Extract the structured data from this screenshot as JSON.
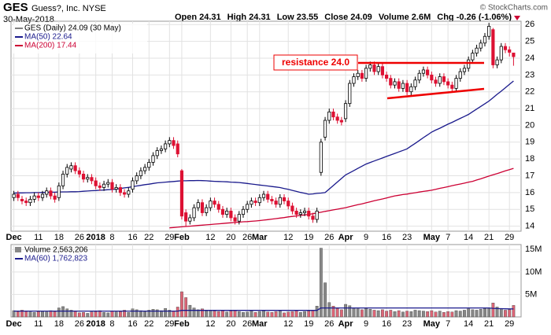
{
  "header": {
    "symbol": "GES",
    "company": "Guess?, Inc. NYSE",
    "date": "30-May-2018",
    "credit": "© StockCharts.com",
    "quote": [
      "Open 24.31",
      "High 24.31",
      "Low 23.55",
      "Close 24.09",
      "Volume 2.6M",
      "Chg -0.26 (-1.06%)"
    ]
  },
  "chart_data": {
    "type": "candlestick",
    "name": "GES (Daily) 24.09 (30 May)",
    "categories": [
      "Dec",
      null,
      null,
      null,
      null,
      null,
      "11",
      null,
      null,
      null,
      null,
      "18",
      null,
      null,
      null,
      null,
      "26",
      null,
      null,
      null,
      "2018",
      null,
      null,
      null,
      "8",
      null,
      null,
      null,
      null,
      "16",
      null,
      null,
      null,
      "22",
      null,
      null,
      null,
      null,
      "29",
      null,
      null,
      "Feb",
      null,
      null,
      null,
      null,
      null,
      null,
      "12",
      null,
      null,
      null,
      null,
      "20",
      null,
      null,
      null,
      "26",
      null,
      null,
      "Mar",
      null,
      null,
      null,
      null,
      null,
      null,
      "12",
      null,
      null,
      null,
      null,
      "19",
      null,
      null,
      null,
      null,
      "26",
      null,
      null,
      null,
      "Apr",
      null,
      null,
      null,
      null,
      "9",
      null,
      null,
      null,
      null,
      "16",
      null,
      null,
      null,
      null,
      "23",
      null,
      null,
      null,
      null,
      null,
      "May",
      null,
      null,
      null,
      "7",
      null,
      null,
      null,
      null,
      "14",
      null,
      null,
      null,
      null,
      "21",
      null,
      null,
      null,
      null,
      "29",
      null
    ],
    "open": [
      15.7,
      15.9,
      15.6,
      15.5,
      15.4,
      15.6,
      15.8,
      15.7,
      15.9,
      16.1,
      15.8,
      15.7,
      16.4,
      17.1,
      17.4,
      17.6,
      17.3,
      17.1,
      16.8,
      16.9,
      16.7,
      16.4,
      16.3,
      16.5,
      16.6,
      16.2,
      16.3,
      16.0,
      15.9,
      16.2,
      16.7,
      17.0,
      17.3,
      17.5,
      17.8,
      18.2,
      18.5,
      18.6,
      18.9,
      19.1,
      18.9,
      17.3,
      14.8,
      14.3,
      14.5,
      15.1,
      15.4,
      14.8,
      15.1,
      15.5,
      15.3,
      15.0,
      14.7,
      14.9,
      14.5,
      14.3,
      14.7,
      15.0,
      15.3,
      15.5,
      15.4,
      15.7,
      15.9,
      15.6,
      15.5,
      15.3,
      15.7,
      15.5,
      15.2,
      14.9,
      14.7,
      14.8,
      14.9,
      14.6,
      14.4,
      17.2,
      19.3,
      20.3,
      20.8,
      20.5,
      20.3,
      20.4,
      21.3,
      22.5,
      22.9,
      23.1,
      22.8,
      23.4,
      23.6,
      23.2,
      23.5,
      23.0,
      22.8,
      22.4,
      22.6,
      22.2,
      22.5,
      22.0,
      22.3,
      22.7,
      23.1,
      23.3,
      23.0,
      22.7,
      22.5,
      22.9,
      22.6,
      22.4,
      22.2,
      22.8,
      23.2,
      23.4,
      23.9,
      24.3,
      24.6,
      24.9,
      25.3,
      25.7,
      23.6,
      23.9,
      24.7,
      24.5,
      24.31
    ],
    "high": [
      16.1,
      16.1,
      15.8,
      15.7,
      15.8,
      16.0,
      16.0,
      16.1,
      16.3,
      16.3,
      16.0,
      16.6,
      17.3,
      17.7,
      17.8,
      17.8,
      17.5,
      17.3,
      17.1,
      17.1,
      16.9,
      16.6,
      16.7,
      16.8,
      16.8,
      16.5,
      16.5,
      16.2,
      16.3,
      16.9,
      17.2,
      17.5,
      17.7,
      18.0,
      18.4,
      18.7,
      18.8,
      19.1,
      19.3,
      19.3,
      19.1,
      17.4,
      15.0,
      14.7,
      15.3,
      15.6,
      15.6,
      15.3,
      15.7,
      15.7,
      15.5,
      15.2,
      15.1,
      15.1,
      14.7,
      14.9,
      15.2,
      15.5,
      15.7,
      15.7,
      15.9,
      16.1,
      16.1,
      15.8,
      15.7,
      15.9,
      15.9,
      15.7,
      15.4,
      15.1,
      15.0,
      15.1,
      15.1,
      14.8,
      15.1,
      19.2,
      20.5,
      21.0,
      21.0,
      20.7,
      20.5,
      21.5,
      22.7,
      23.1,
      23.3,
      23.3,
      23.6,
      23.8,
      23.8,
      23.7,
      23.7,
      23.2,
      23.0,
      22.8,
      22.8,
      22.7,
      22.7,
      22.5,
      22.9,
      23.3,
      23.5,
      23.5,
      23.2,
      22.9,
      23.1,
      23.1,
      22.8,
      22.6,
      23.0,
      23.4,
      23.6,
      24.1,
      24.5,
      24.8,
      25.1,
      25.5,
      26.1,
      25.8,
      24.1,
      24.9,
      24.9,
      24.7,
      24.31
    ],
    "low": [
      15.5,
      15.5,
      15.3,
      15.2,
      15.2,
      15.4,
      15.5,
      15.5,
      15.7,
      15.6,
      15.4,
      15.5,
      16.2,
      16.9,
      17.2,
      17.1,
      16.9,
      16.6,
      16.6,
      16.5,
      16.2,
      16.1,
      16.1,
      16.3,
      16.0,
      16.0,
      15.8,
      15.7,
      15.7,
      16.0,
      16.5,
      16.8,
      17.1,
      17.3,
      17.6,
      18.0,
      18.3,
      18.4,
      18.7,
      18.6,
      18.1,
      14.4,
      14.0,
      14.1,
      14.3,
      14.9,
      14.6,
      14.6,
      14.9,
      15.1,
      14.8,
      14.5,
      14.5,
      14.3,
      14.1,
      14.1,
      14.5,
      14.8,
      15.1,
      15.2,
      15.2,
      15.5,
      15.4,
      15.3,
      15.1,
      15.1,
      15.3,
      15.0,
      14.7,
      14.5,
      14.5,
      14.6,
      14.4,
      14.2,
      14.2,
      17.0,
      19.1,
      20.1,
      20.3,
      20.1,
      20.0,
      20.2,
      21.1,
      22.3,
      22.7,
      22.6,
      22.6,
      23.2,
      23.0,
      23.0,
      22.8,
      22.6,
      22.2,
      22.2,
      22.0,
      22.0,
      21.8,
      21.8,
      22.1,
      22.5,
      22.9,
      22.8,
      22.5,
      22.3,
      22.3,
      22.4,
      22.2,
      22.0,
      22.0,
      22.6,
      23.0,
      23.2,
      23.7,
      24.1,
      24.4,
      24.7,
      25.1,
      23.4,
      23.4,
      23.7,
      24.3,
      24.1,
      23.55
    ],
    "close": [
      15.9,
      15.7,
      15.5,
      15.4,
      15.6,
      15.8,
      15.7,
      15.9,
      16.1,
      15.8,
      15.6,
      16.4,
      17.1,
      17.5,
      17.6,
      17.3,
      17.1,
      16.8,
      16.9,
      16.7,
      16.4,
      16.3,
      16.5,
      16.6,
      16.2,
      16.3,
      16.0,
      15.9,
      16.1,
      16.7,
      17.0,
      17.3,
      17.5,
      17.8,
      18.2,
      18.5,
      18.6,
      18.9,
      19.1,
      18.8,
      18.3,
      14.6,
      14.3,
      14.5,
      15.1,
      15.4,
      14.8,
      15.1,
      15.5,
      15.3,
      15.0,
      14.7,
      14.9,
      14.5,
      14.3,
      14.7,
      15.0,
      15.3,
      15.5,
      15.4,
      15.7,
      15.9,
      15.6,
      15.5,
      15.3,
      15.7,
      15.5,
      15.2,
      14.9,
      14.7,
      14.8,
      14.9,
      14.6,
      14.4,
      14.9,
      19.0,
      20.3,
      20.8,
      20.5,
      20.3,
      20.2,
      21.3,
      22.5,
      22.9,
      23.1,
      22.8,
      23.4,
      23.6,
      23.2,
      23.5,
      23.0,
      22.8,
      22.4,
      22.6,
      22.2,
      22.5,
      22.0,
      22.3,
      22.7,
      23.1,
      23.3,
      23.0,
      22.7,
      22.5,
      22.9,
      22.6,
      22.4,
      22.2,
      22.8,
      23.2,
      23.4,
      23.9,
      24.3,
      24.6,
      24.9,
      25.3,
      25.9,
      23.6,
      23.9,
      24.7,
      24.5,
      24.35,
      24.09
    ],
    "volume_name": "Volume 2,563,206",
    "volume": [
      1400000.0,
      1200000.0,
      1500000.0,
      1300000.0,
      1100000.0,
      1000000.0,
      1200000.0,
      1300000.0,
      1100000.0,
      1400000.0,
      1200000.0,
      2000000.0,
      2300000.0,
      1800000.0,
      1500000.0,
      1300000.0,
      900000.0,
      1000000.0,
      800000.0,
      1100000.0,
      1200000.0,
      1400000.0,
      1000000.0,
      900000.0,
      1300000.0,
      1100000.0,
      1200000.0,
      1500000.0,
      1000000.0,
      1800000.0,
      1600000.0,
      1400000.0,
      1300000.0,
      1500000.0,
      1700000.0,
      1600000.0,
      1400000.0,
      1900000.0,
      1500000.0,
      1300000.0,
      2200000.0,
      5600000.0,
      4300000.0,
      2600000.0,
      2000000.0,
      1600000.0,
      1800000.0,
      1400000.0,
      1500000.0,
      1300000.0,
      1200000.0,
      1400000.0,
      1100000.0,
      1300000.0,
      1500000.0,
      1200000.0,
      1000000.0,
      1100000.0,
      1300000.0,
      1000000.0,
      1200000.0,
      1400000.0,
      1100000.0,
      1000000.0,
      1200000.0,
      1300000.0,
      900000.0,
      1100000.0,
      1200000.0,
      1400000.0,
      1000000.0,
      1200000.0,
      1300000.0,
      1500000.0,
      2400000.0,
      15300000.0,
      7600000.0,
      3200000.0,
      2400000.0,
      1900000.0,
      1600000.0,
      2800000.0,
      2500000.0,
      2000000.0,
      1800000.0,
      1600000.0,
      1900000.0,
      1700000.0,
      1500000.0,
      1400000.0,
      1600000.0,
      1300000.0,
      1500000.0,
      1200000.0,
      1400000.0,
      1100000.0,
      1300000.0,
      1200000.0,
      1500000.0,
      1400000.0,
      1300000.0,
      1200000.0,
      1400000.0,
      1100000.0,
      1300000.0,
      1000000.0,
      1200000.0,
      1100000.0,
      1400000.0,
      1300000.0,
      1500000.0,
      1800000.0,
      1600000.0,
      1500000.0,
      1700000.0,
      1900000.0,
      2000000.0,
      3100000.0,
      2200000.0,
      1800000.0,
      1500000.0,
      1600000.0,
      2563206
    ],
    "series": [
      {
        "name": "MA(50) 22.64",
        "color": "#1a1a8c",
        "values": [
          15.97,
          15.98,
          15.98,
          15.99,
          15.99,
          16.0,
          16.0,
          16.01,
          16.01,
          16.02,
          16.02,
          16.03,
          16.04,
          16.04,
          16.05,
          16.05,
          16.06,
          16.08,
          16.09,
          16.11,
          16.12,
          16.14,
          16.15,
          16.17,
          16.18,
          16.2,
          16.24,
          16.28,
          16.31,
          16.35,
          16.39,
          16.43,
          16.47,
          16.5,
          16.54,
          16.58,
          16.6,
          16.62,
          16.64,
          16.66,
          16.68,
          16.7,
          16.7,
          16.71,
          16.71,
          16.72,
          16.71,
          16.7,
          16.68,
          16.67,
          16.66,
          16.65,
          16.64,
          16.62,
          16.61,
          16.6,
          16.57,
          16.54,
          16.51,
          16.48,
          16.45,
          16.42,
          16.39,
          16.36,
          16.33,
          16.3,
          16.24,
          16.19,
          16.13,
          16.07,
          16.01,
          15.96,
          15.9,
          15.92,
          15.95,
          15.97,
          16.0,
          16.21,
          16.42,
          16.63,
          16.84,
          17.05,
          17.18,
          17.31,
          17.44,
          17.57,
          17.7,
          17.79,
          17.88,
          17.97,
          18.06,
          18.15,
          18.24,
          18.33,
          18.42,
          18.51,
          18.6,
          18.77,
          18.93,
          19.1,
          19.27,
          19.43,
          19.6,
          19.72,
          19.83,
          19.95,
          20.07,
          20.18,
          20.3,
          20.42,
          20.53,
          20.65,
          20.81,
          20.97,
          21.13,
          21.29,
          21.45,
          21.65,
          21.85,
          22.04,
          22.24,
          22.44,
          22.64
        ]
      },
      {
        "name": "MA(200) 17.44",
        "color": "#cc0033",
        "values": [
          null,
          null,
          null,
          null,
          null,
          null,
          null,
          null,
          null,
          null,
          null,
          null,
          null,
          null,
          null,
          null,
          null,
          null,
          null,
          null,
          null,
          null,
          null,
          null,
          null,
          null,
          null,
          null,
          null,
          null,
          null,
          null,
          null,
          null,
          null,
          null,
          null,
          null,
          13.9,
          13.92,
          13.94,
          13.96,
          13.98,
          14.0,
          14.02,
          14.04,
          14.06,
          14.08,
          14.1,
          14.12,
          14.14,
          14.16,
          14.18,
          14.2,
          14.22,
          14.24,
          14.26,
          14.27,
          14.29,
          14.31,
          14.33,
          14.36,
          14.39,
          14.42,
          14.45,
          14.48,
          14.51,
          14.55,
          14.58,
          14.61,
          14.64,
          14.67,
          14.7,
          14.74,
          14.79,
          14.83,
          14.88,
          14.92,
          14.97,
          15.01,
          15.06,
          15.1,
          15.16,
          15.22,
          15.28,
          15.33,
          15.39,
          15.45,
          15.51,
          15.57,
          15.62,
          15.68,
          15.74,
          15.8,
          15.84,
          15.88,
          15.91,
          15.95,
          15.99,
          16.03,
          16.07,
          16.1,
          16.14,
          16.19,
          16.25,
          16.3,
          16.35,
          16.41,
          16.46,
          16.51,
          16.56,
          16.62,
          16.67,
          16.75,
          16.82,
          16.9,
          16.98,
          17.06,
          17.13,
          17.21,
          17.29,
          17.36,
          17.44
        ]
      }
    ],
    "volume_series": {
      "name": "MA(60) 1,762,823",
      "color": "#1a1a8c",
      "values": [
        1300000.0,
        1300000.0,
        1300000.0,
        1300000.0,
        1300000.0,
        1300000.0,
        1300000.0,
        1300000.0,
        1300000.0,
        1300000.0,
        1300000.0,
        1300000.0,
        1300000.0,
        1300000.0,
        1300000.0,
        1300000.0,
        1300000.0,
        1300000.0,
        1300000.0,
        1300000.0,
        1300000.0,
        1300000.0,
        1300000.0,
        1300000.0,
        1300000.0,
        1300000.0,
        1300000.0,
        1300000.0,
        1300000.0,
        1300000.0,
        1300000.0,
        1300000.0,
        1300000.0,
        1300000.0,
        1300000.0,
        1300000.0,
        1300000.0,
        1300000.0,
        1300000.0,
        1300000.0,
        1300000.0,
        1450000.0,
        1450000.0,
        1450000.0,
        1450000.0,
        1450000.0,
        1450000.0,
        1450000.0,
        1450000.0,
        1450000.0,
        1450000.0,
        1450000.0,
        1450000.0,
        1450000.0,
        1450000.0,
        1450000.0,
        1450000.0,
        1450000.0,
        1450000.0,
        1450000.0,
        1450000.0,
        1450000.0,
        1450000.0,
        1450000.0,
        1450000.0,
        1450000.0,
        1450000.0,
        1450000.0,
        1450000.0,
        1450000.0,
        1450000.0,
        1450000.0,
        1450000.0,
        1450000.0,
        1450000.0,
        2000000.0,
        2000000.0,
        2000000.0,
        2000000.0,
        2000000.0,
        2000000.0,
        2000000.0,
        2000000.0,
        2000000.0,
        2000000.0,
        2000000.0,
        2000000.0,
        2000000.0,
        2000000.0,
        2000000.0,
        2000000.0,
        2000000.0,
        2000000.0,
        2000000.0,
        2000000.0,
        2000000.0,
        2000000.0,
        2000000.0,
        2000000.0,
        2000000.0,
        2000000.0,
        2000000.0,
        2000000.0,
        2000000.0,
        2000000.0,
        2000000.0,
        2000000.0,
        2000000.0,
        2000000.0,
        2000000.0,
        2000000.0,
        2000000.0,
        2000000.0,
        2000000.0,
        2000000.0,
        2000000.0,
        2000000.0,
        1900000.0,
        1860000.0,
        1830000.0,
        1800000.0,
        1780000.0,
        1762823
      ]
    },
    "ylim": [
      13.7,
      26.2
    ],
    "yticks": [
      14,
      15,
      16,
      17,
      18,
      19,
      20,
      21,
      22,
      23,
      24,
      25,
      26
    ],
    "volume_ylim": [
      0,
      16100000
    ],
    "volume_yticks": [
      {
        "value": 5000000,
        "label": "5M"
      },
      {
        "value": 10000000,
        "label": "10M"
      },
      {
        "value": 15000000,
        "label": "15M"
      }
    ],
    "up_color": "#ffffff",
    "down_color": "#dd1133",
    "volume_up_color": "#888888",
    "volume_down_color": "#dd6677",
    "grid": true,
    "annotations": [
      "resistance 24.0"
    ]
  }
}
